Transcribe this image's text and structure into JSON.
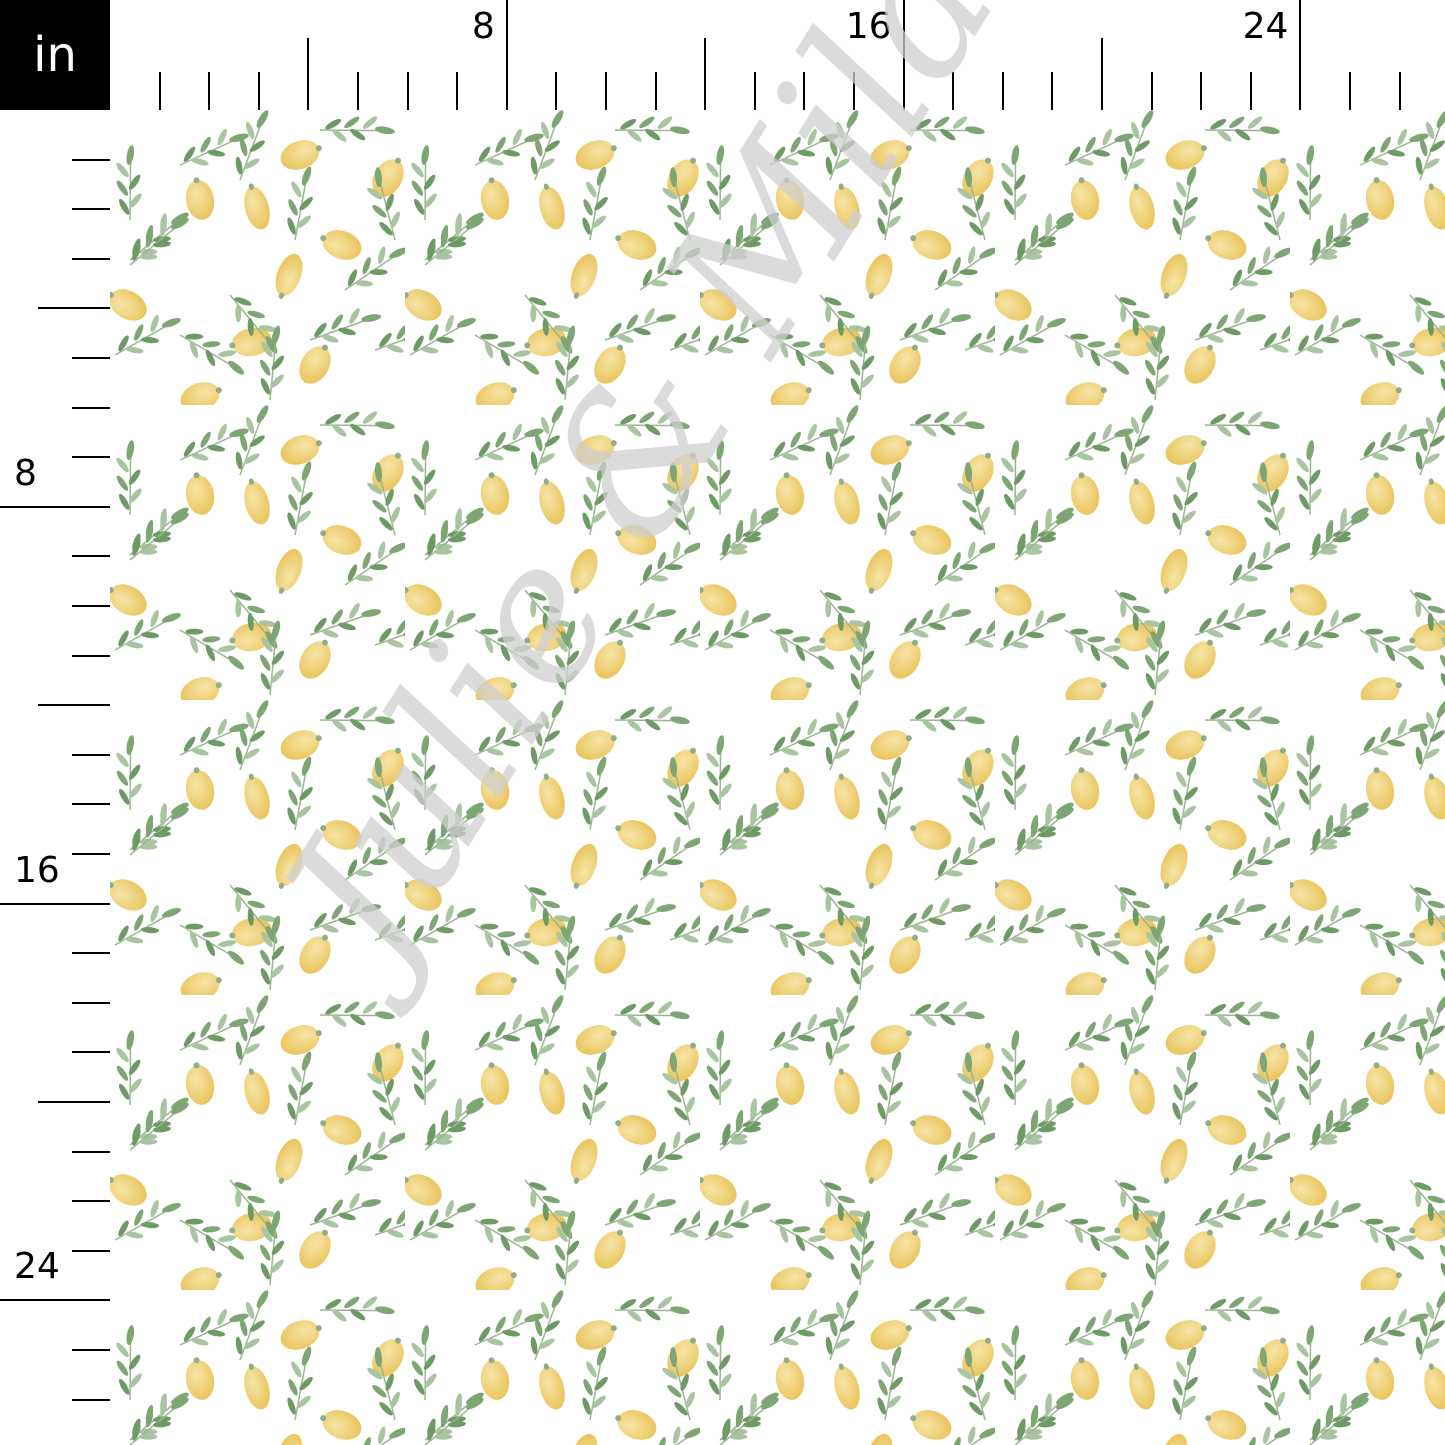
{
  "ruler": {
    "unit": "in",
    "labels": [
      "8",
      "16",
      "24"
    ]
  },
  "fabric": {
    "motifs": [
      "lemon",
      "leaf-sprig"
    ],
    "colors": {
      "background": "#ffffff",
      "lemon": "#f0cf6e",
      "lemon_light": "#f6e2a0",
      "leaf_dark": "#6e9a66",
      "leaf_light": "#a9c4a0"
    }
  },
  "watermark": "Julie & Mila"
}
